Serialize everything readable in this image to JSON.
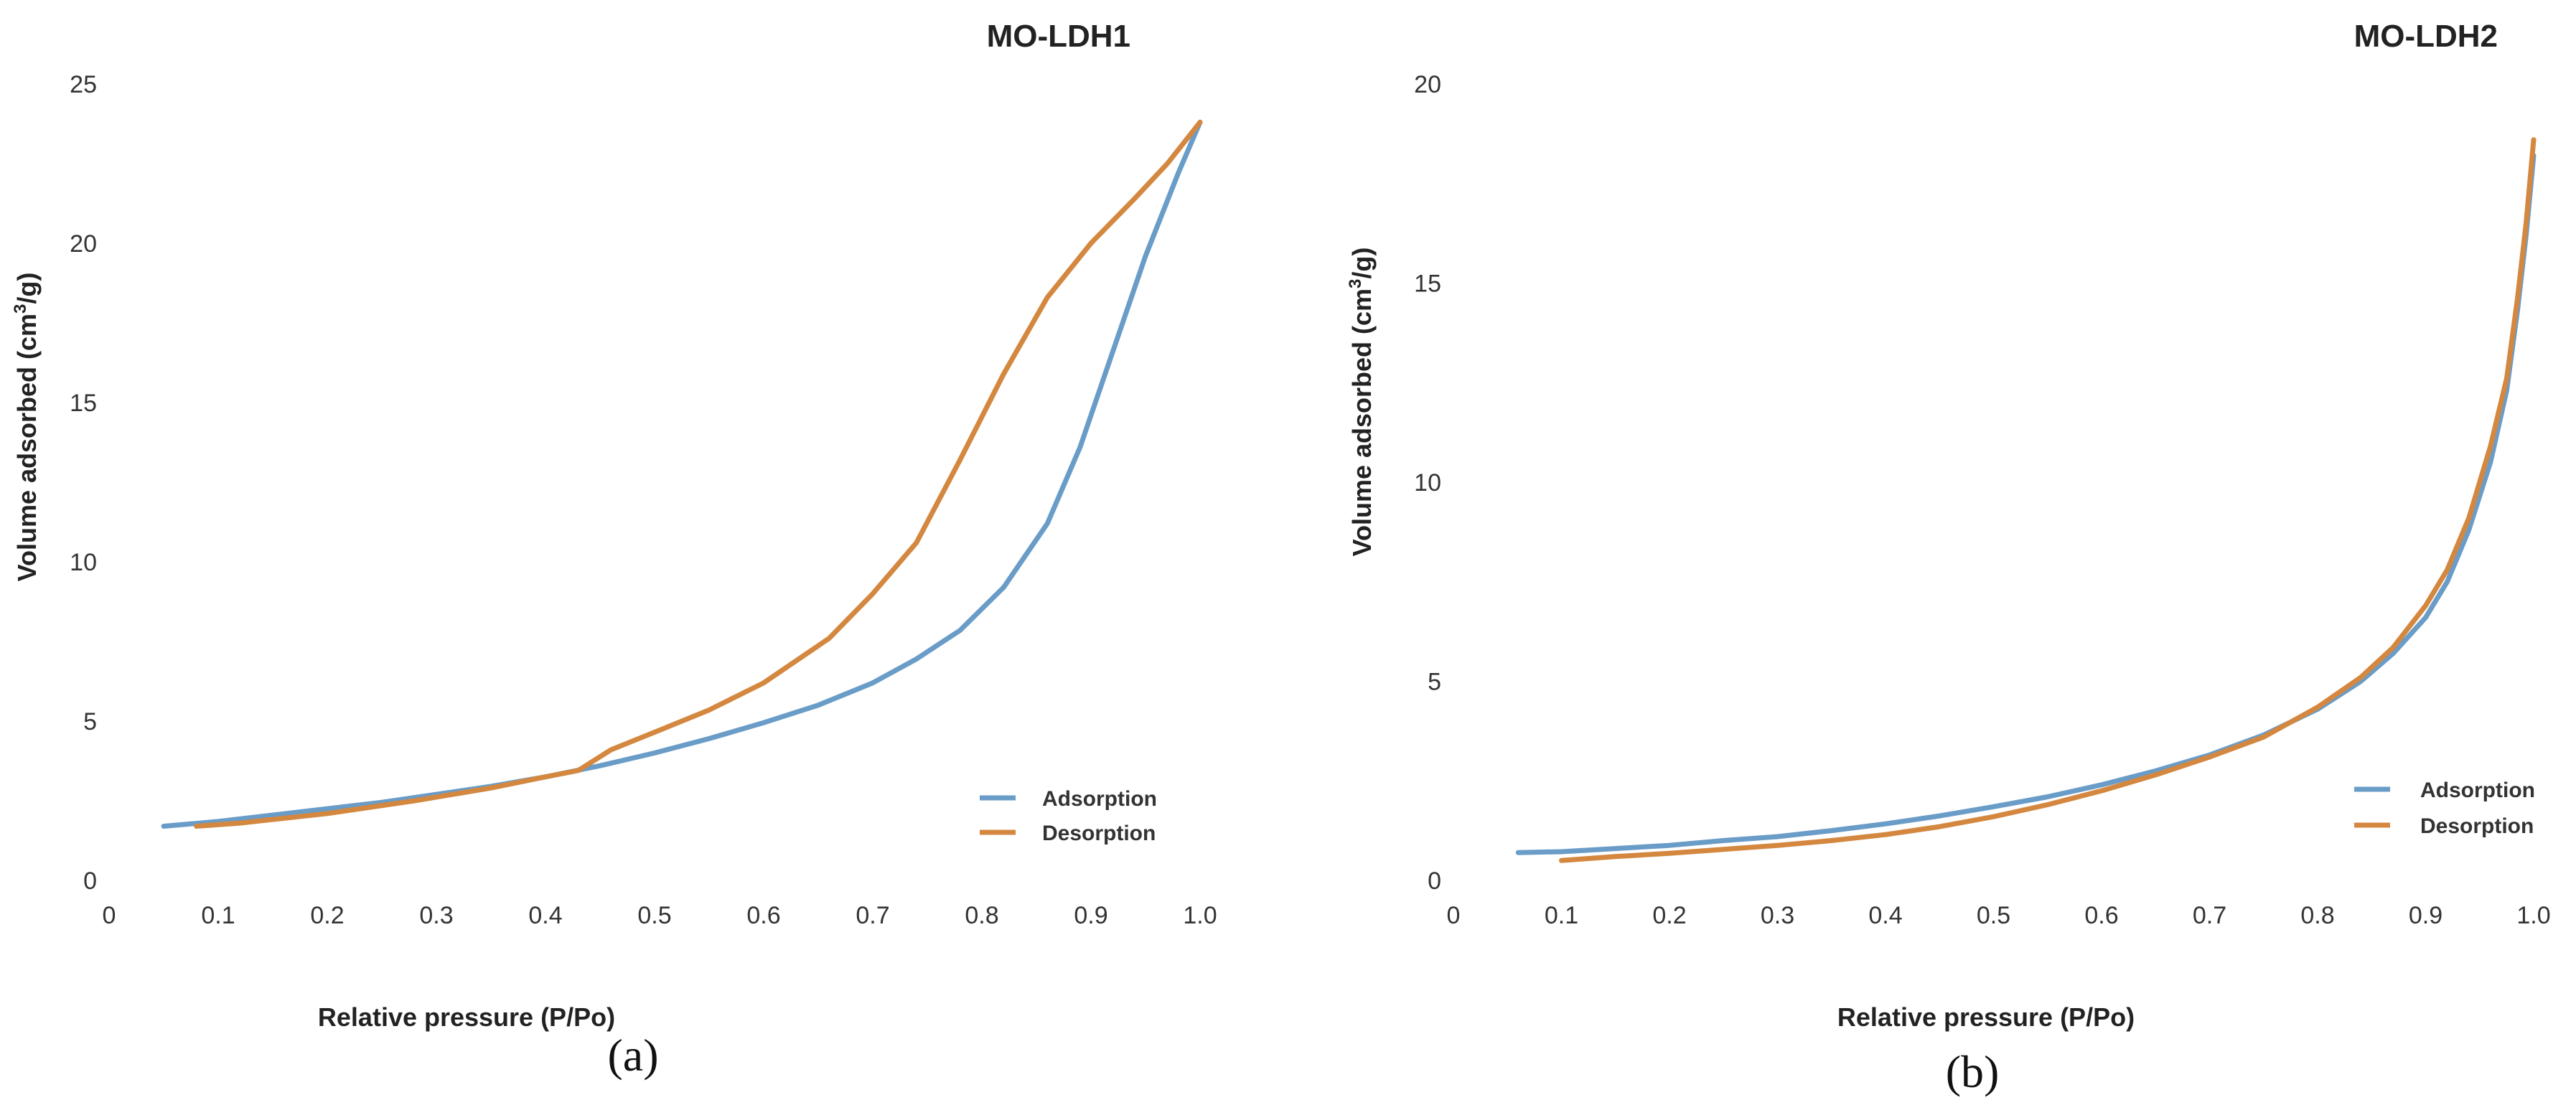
{
  "colors": {
    "adsorption": "#6A9CC8",
    "desorption": "#D4873F"
  },
  "chart_data": [
    {
      "type": "line",
      "title": "MO-LDH1",
      "xlabel": "Relative pressure (P/Po)",
      "ylabel_prefix": "Volume adsorbed (cm",
      "ylabel_sup": "3",
      "ylabel_suffix": "/g)",
      "caption": "(a)",
      "xlim": [
        0,
        1.0
      ],
      "ylim": [
        0,
        25
      ],
      "xticks": [
        "0",
        "0.1",
        "0.2",
        "0.3",
        "0.4",
        "0.5",
        "0.6",
        "0.7",
        "0.8",
        "0.9",
        "1.0"
      ],
      "yticks": [
        "0",
        "5",
        "10",
        "15",
        "20",
        "25"
      ],
      "legend": [
        "Adsorption",
        "Desorption"
      ],
      "series": [
        {
          "name": "Adsorption",
          "x": [
            0.05,
            0.1,
            0.15,
            0.2,
            0.25,
            0.3,
            0.35,
            0.4,
            0.45,
            0.5,
            0.55,
            0.6,
            0.65,
            0.7,
            0.74,
            0.78,
            0.82,
            0.86,
            0.89,
            0.92,
            0.95,
            0.98,
            1.0
          ],
          "y": [
            1.7,
            1.85,
            2.05,
            2.25,
            2.45,
            2.7,
            2.95,
            3.25,
            3.6,
            4.0,
            4.45,
            4.95,
            5.5,
            6.2,
            6.95,
            7.85,
            9.2,
            11.2,
            13.6,
            16.6,
            19.6,
            22.2,
            23.8
          ]
        },
        {
          "name": "Desorption",
          "x": [
            0.08,
            0.12,
            0.2,
            0.28,
            0.35,
            0.4,
            0.43,
            0.46,
            0.5,
            0.55,
            0.6,
            0.66,
            0.7,
            0.74,
            0.78,
            0.82,
            0.86,
            0.9,
            0.94,
            0.97,
            1.0
          ],
          "y": [
            1.7,
            1.8,
            2.1,
            2.5,
            2.9,
            3.25,
            3.45,
            4.1,
            4.65,
            5.35,
            6.2,
            7.6,
            9.0,
            10.6,
            13.2,
            15.9,
            18.3,
            20.0,
            21.4,
            22.5,
            23.8
          ]
        }
      ]
    },
    {
      "type": "line",
      "title": "MO-LDH2",
      "xlabel": "Relative pressure (P/Po)",
      "ylabel_prefix": "Volume adsorbed (cm",
      "ylabel_sup": "3",
      "ylabel_suffix": "/g)",
      "caption": "(b)",
      "xlim": [
        0,
        1.0
      ],
      "ylim": [
        0,
        20
      ],
      "xticks": [
        "0",
        "0.1",
        "0.2",
        "0.3",
        "0.4",
        "0.5",
        "0.6",
        "0.7",
        "0.8",
        "0.9",
        "1.0"
      ],
      "yticks": [
        "0",
        "5",
        "10",
        "15",
        "20"
      ],
      "legend": [
        "Adsorption",
        "Desorption"
      ],
      "series": [
        {
          "name": "Adsorption",
          "x": [
            0.06,
            0.1,
            0.15,
            0.2,
            0.25,
            0.3,
            0.35,
            0.4,
            0.45,
            0.5,
            0.55,
            0.6,
            0.65,
            0.7,
            0.75,
            0.8,
            0.84,
            0.87,
            0.9,
            0.92,
            0.94,
            0.96,
            0.975,
            0.985,
            0.993,
            1.0
          ],
          "y": [
            0.7,
            0.72,
            0.8,
            0.88,
            1.0,
            1.1,
            1.25,
            1.42,
            1.62,
            1.85,
            2.1,
            2.4,
            2.75,
            3.15,
            3.65,
            4.3,
            5.0,
            5.7,
            6.6,
            7.5,
            8.8,
            10.5,
            12.3,
            14.3,
            16.2,
            18.2
          ]
        },
        {
          "name": "Desorption",
          "x": [
            0.1,
            0.15,
            0.2,
            0.25,
            0.3,
            0.35,
            0.4,
            0.45,
            0.5,
            0.55,
            0.6,
            0.65,
            0.7,
            0.75,
            0.8,
            0.84,
            0.87,
            0.9,
            0.92,
            0.94,
            0.96,
            0.975,
            0.985,
            0.993,
            1.0
          ],
          "y": [
            0.5,
            0.6,
            0.68,
            0.78,
            0.88,
            1.0,
            1.15,
            1.35,
            1.6,
            1.9,
            2.25,
            2.65,
            3.1,
            3.6,
            4.35,
            5.1,
            5.85,
            6.9,
            7.8,
            9.1,
            10.9,
            12.6,
            14.6,
            16.5,
            18.6
          ]
        }
      ]
    }
  ]
}
